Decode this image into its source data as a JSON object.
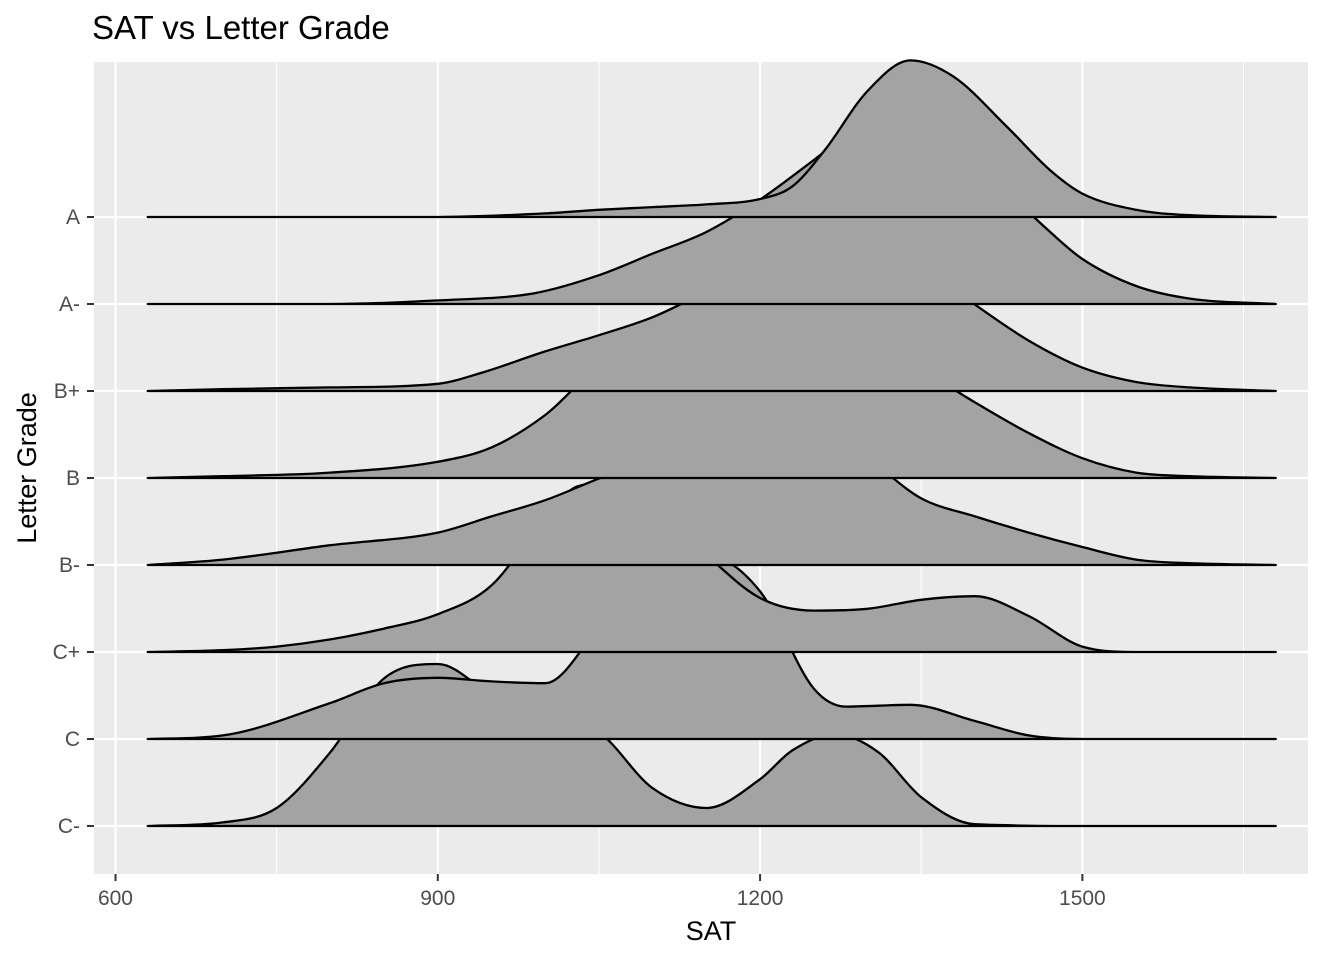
{
  "chart_data": {
    "type": "ridgeline",
    "title": "SAT vs Letter Grade",
    "xlabel": "SAT",
    "ylabel": "Letter Grade",
    "xlim": [
      580,
      1710
    ],
    "x_range": [
      630,
      1680
    ],
    "x_ticks": [
      600,
      900,
      1200,
      1500
    ],
    "x_minor_ticks": [
      750,
      1050,
      1350,
      1650
    ],
    "grid": true,
    "fill_color": "#a3a3a3",
    "line_color": "#000000",
    "panel_color": "#ebebeb",
    "categories": [
      "A",
      "A-",
      "B+",
      "B",
      "B-",
      "C+",
      "C",
      "C-"
    ],
    "series": [
      {
        "name": "A",
        "x": [
          630,
          900,
          1000,
          1050,
          1100,
          1150,
          1200,
          1230,
          1260,
          1300,
          1340,
          1380,
          1430,
          1470,
          1500,
          1550,
          1600,
          1680
        ],
        "y": [
          0,
          0,
          0.02,
          0.04,
          0.055,
          0.07,
          0.1,
          0.17,
          0.37,
          0.7,
          0.87,
          0.78,
          0.5,
          0.26,
          0.13,
          0.04,
          0.01,
          0
        ]
      },
      {
        "name": "A-",
        "x": [
          630,
          800,
          900,
          990,
          1050,
          1100,
          1150,
          1200,
          1250,
          1280,
          1320,
          1370,
          1420,
          1470,
          1500,
          1550,
          1600,
          1680
        ],
        "y": [
          0,
          0,
          0.02,
          0.06,
          0.16,
          0.28,
          0.4,
          0.58,
          0.8,
          0.94,
          1.1,
          0.95,
          0.68,
          0.4,
          0.25,
          0.1,
          0.03,
          0
        ]
      },
      {
        "name": "B+",
        "x": [
          630,
          700,
          800,
          900,
          940,
          1000,
          1050,
          1100,
          1150,
          1200,
          1250,
          1300,
          1350,
          1400,
          1450,
          1500,
          1550,
          1600,
          1680
        ],
        "y": [
          0,
          0.01,
          0.02,
          0.04,
          0.1,
          0.22,
          0.31,
          0.41,
          0.55,
          0.67,
          0.78,
          0.89,
          0.7,
          0.48,
          0.28,
          0.13,
          0.05,
          0.02,
          0
        ]
      },
      {
        "name": "B",
        "x": [
          630,
          700,
          800,
          900,
          950,
          1000,
          1050,
          1100,
          1150,
          1200,
          1250,
          1300,
          1350,
          1400,
          1450,
          1500,
          1550,
          1600,
          1680
        ],
        "y": [
          0,
          0.01,
          0.03,
          0.09,
          0.17,
          0.35,
          0.62,
          0.74,
          0.81,
          0.83,
          0.82,
          0.73,
          0.6,
          0.42,
          0.25,
          0.11,
          0.03,
          0.01,
          0
        ]
      },
      {
        "name": "B-",
        "x": [
          630,
          700,
          800,
          900,
          950,
          1000,
          1050,
          1100,
          1150,
          1200,
          1250,
          1280,
          1300,
          1350,
          1400,
          1450,
          1500,
          1550,
          1600,
          1680
        ],
        "y": [
          0,
          0.03,
          0.11,
          0.18,
          0.27,
          0.36,
          0.48,
          0.59,
          0.64,
          0.62,
          0.64,
          0.65,
          0.59,
          0.37,
          0.27,
          0.18,
          0.1,
          0.03,
          0.01,
          0
        ]
      },
      {
        "name": "C+",
        "x": [
          630,
          700,
          750,
          800,
          850,
          900,
          950,
          1000,
          1030,
          1060,
          1100,
          1150,
          1200,
          1250,
          1300,
          1350,
          1400,
          1450,
          1500,
          1550,
          1680
        ],
        "y": [
          0,
          0.01,
          0.03,
          0.07,
          0.13,
          0.21,
          0.37,
          0.75,
          0.92,
          0.94,
          0.82,
          0.54,
          0.3,
          0.23,
          0.24,
          0.29,
          0.31,
          0.2,
          0.03,
          0,
          0
        ]
      },
      {
        "name": "C",
        "x": [
          630,
          700,
          800,
          850,
          900,
          950,
          1000,
          1050,
          1100,
          1150,
          1200,
          1250,
          1280,
          1340,
          1400,
          1450,
          1500,
          1680
        ],
        "y": [
          0,
          0.02,
          0.2,
          0.31,
          0.34,
          0.32,
          0.31,
          0.62,
          0.96,
          1.02,
          0.82,
          0.28,
          0.18,
          0.19,
          0.1,
          0.02,
          0,
          0
        ]
      },
      {
        "name": "C-",
        "x": [
          630,
          700,
          750,
          800,
          850,
          900,
          950,
          1000,
          1050,
          1100,
          1150,
          1200,
          1230,
          1270,
          1310,
          1350,
          1400,
          1500,
          1680
        ],
        "y": [
          0,
          0.02,
          0.1,
          0.41,
          0.82,
          0.9,
          0.73,
          0.6,
          0.52,
          0.21,
          0.1,
          0.26,
          0.42,
          0.51,
          0.41,
          0.16,
          0.01,
          0,
          0
        ]
      }
    ]
  }
}
